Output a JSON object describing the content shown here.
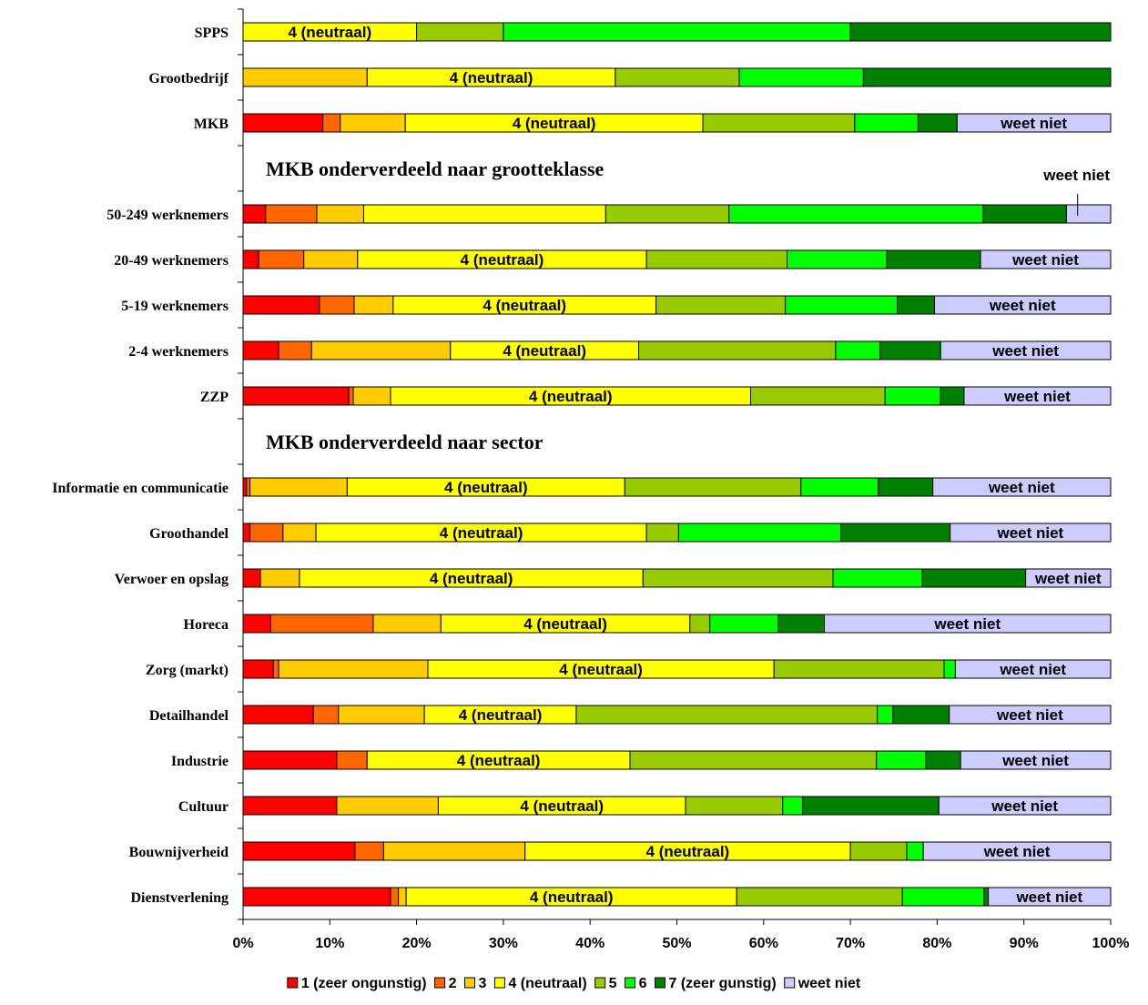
{
  "chart_data": {
    "type": "bar",
    "orientation": "horizontal",
    "stacked": "percent",
    "xlim": [
      0,
      100
    ],
    "x_ticks": [
      "0%",
      "10%",
      "20%",
      "30%",
      "40%",
      "50%",
      "60%",
      "70%",
      "80%",
      "90%",
      "100%"
    ],
    "legend_position": "bottom",
    "series_names": [
      "1 (zeer ongunstig)",
      "2",
      "3",
      "4 (neutraal)",
      "5",
      "6",
      "7 (zeer gunstig)",
      "weet niet"
    ],
    "series_colors": [
      "#FF0000",
      "#FF6600",
      "#FFCC00",
      "#FFFF00",
      "#99CC00",
      "#00FF00",
      "#008000",
      "#CCCCFF"
    ],
    "inline_labels": {
      "3": "4 (neutraal)",
      "7": "weet niet"
    },
    "sections": [
      "MKB onderverdeeld naar grootteklasse",
      "MKB onderverdeeld naar sector"
    ],
    "rows": [
      {
        "kind": "bar",
        "category": "SPPS",
        "values": [
          0,
          0,
          0,
          20,
          10,
          40,
          30,
          0
        ]
      },
      {
        "kind": "bar",
        "category": "Grootbedrijf",
        "values": [
          0,
          0,
          14.3,
          28.6,
          14.3,
          14.3,
          28.5,
          0
        ]
      },
      {
        "kind": "bar",
        "category": "MKB",
        "values": [
          9.2,
          2,
          7.5,
          34.3,
          17.5,
          7.3,
          4.5,
          17.7
        ]
      },
      {
        "kind": "section",
        "section": 0
      },
      {
        "kind": "bar",
        "category": "50-249 werknemers",
        "values": [
          2.6,
          5.9,
          5.4,
          27.9,
          14.2,
          29.3,
          9.6,
          5.1
        ],
        "callout": "weet niet"
      },
      {
        "kind": "bar",
        "category": "20-49 werknemers",
        "values": [
          1.8,
          5.2,
          6.2,
          33.3,
          16.2,
          11.5,
          10.8,
          15
        ]
      },
      {
        "kind": "bar",
        "category": "5-19 werknemers",
        "values": [
          8.8,
          4,
          4.5,
          30.3,
          14.9,
          12.9,
          4.3,
          20.3
        ]
      },
      {
        "kind": "bar",
        "category": "2-4 werknemers",
        "values": [
          4.1,
          3.8,
          16,
          21.7,
          22.7,
          5.1,
          7,
          19.6
        ]
      },
      {
        "kind": "bar",
        "category": "ZZP",
        "values": [
          12.2,
          0.5,
          4.3,
          41.5,
          15.5,
          6.4,
          2.7,
          16.9
        ]
      },
      {
        "kind": "section",
        "section": 1
      },
      {
        "kind": "bar",
        "category": "Informatie en communicatie",
        "values": [
          0.4,
          0.4,
          11.2,
          32,
          20.3,
          8.9,
          6.3,
          20.5
        ]
      },
      {
        "kind": "bar",
        "category": "Groothandel",
        "values": [
          0.8,
          3.8,
          3.8,
          38.1,
          3.7,
          18.7,
          12.6,
          18.5
        ]
      },
      {
        "kind": "bar",
        "category": "Verwoer en opslag",
        "values": [
          2,
          0,
          4.5,
          39.6,
          21.9,
          10.3,
          11.9,
          9.8
        ]
      },
      {
        "kind": "bar",
        "category": "Horeca",
        "values": [
          3.2,
          11.8,
          7.8,
          28.7,
          2.3,
          7.9,
          5.3,
          33
        ]
      },
      {
        "kind": "bar",
        "category": "Zorg (markt)",
        "values": [
          3.5,
          0.6,
          17.2,
          39.9,
          19.6,
          1.3,
          0,
          17.9
        ]
      },
      {
        "kind": "bar",
        "category": "Detailhandel",
        "values": [
          8.1,
          2.9,
          9.9,
          17.5,
          34.7,
          1.8,
          6.5,
          18.6
        ]
      },
      {
        "kind": "bar",
        "category": "Industrie",
        "values": [
          10.8,
          3.5,
          0,
          30.3,
          28.4,
          5.7,
          4,
          17.3
        ]
      },
      {
        "kind": "bar",
        "category": "Cultuur",
        "values": [
          10.8,
          0,
          11.7,
          28.5,
          11.2,
          2.3,
          15.7,
          19.8
        ]
      },
      {
        "kind": "bar",
        "category": "Bouwnijverheid",
        "values": [
          12.9,
          3.3,
          16.3,
          37.5,
          6.5,
          1.9,
          0,
          21.6
        ]
      },
      {
        "kind": "bar",
        "category": "Dienstverlening",
        "values": [
          17,
          0.9,
          0.9,
          38.1,
          19.1,
          9.4,
          0.5,
          14.1
        ]
      }
    ]
  }
}
